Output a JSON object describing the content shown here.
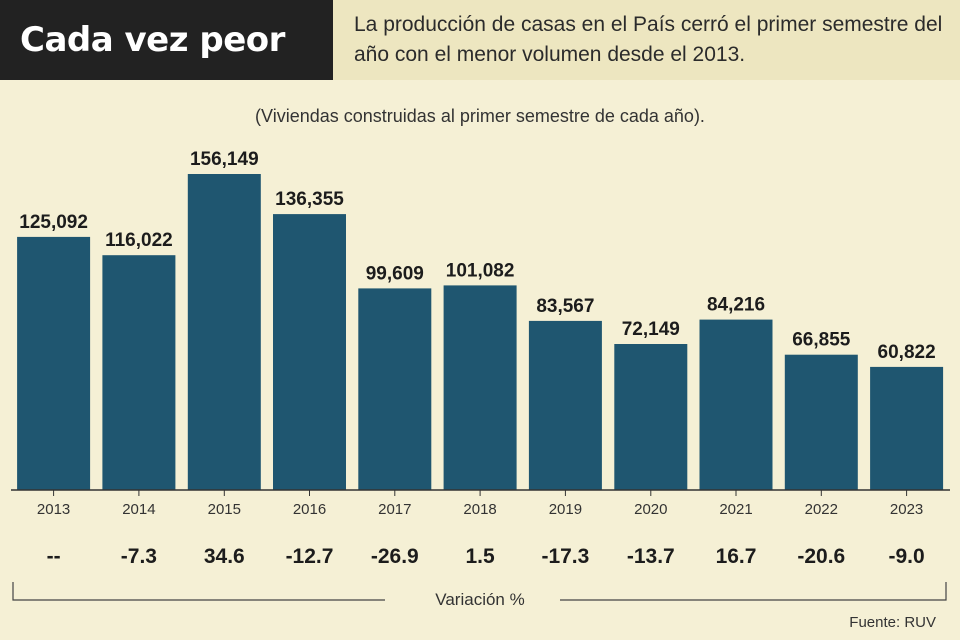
{
  "header": {
    "title": "Cada vez peor",
    "headline": "La producción de casas en el País cerró el primer semestre del año con el menor volumen desde el 2013."
  },
  "colors": {
    "bar": "#1f5670",
    "background": "#f5f0d5",
    "title_bg": "#222222",
    "header_bg": "#ede6c0"
  },
  "chart_data": {
    "type": "bar",
    "subtitle": "(Viviendas construidas al primer semestre de cada año).",
    "categories": [
      "2013",
      "2014",
      "2015",
      "2016",
      "2017",
      "2018",
      "2019",
      "2020",
      "2021",
      "2022",
      "2023"
    ],
    "values": [
      125092,
      116022,
      156149,
      136355,
      99609,
      101082,
      83567,
      72149,
      84216,
      66855,
      60822
    ],
    "value_labels": [
      "125,092",
      "116,022",
      "156,149",
      "136,355",
      "99,609",
      "101,082",
      "83,567",
      "72,149",
      "84,216",
      "66,855",
      "60,822"
    ],
    "variation_labels": [
      "--",
      "-7.3",
      "34.6",
      "-12.7",
      "-26.9",
      "1.5",
      "-17.3",
      "-13.7",
      "16.7",
      "-20.6",
      "-9.0"
    ],
    "variation_title": "Variación %",
    "ylim": [
      0,
      156149
    ],
    "grid": false
  },
  "footer": {
    "source": "Fuente: RUV"
  }
}
